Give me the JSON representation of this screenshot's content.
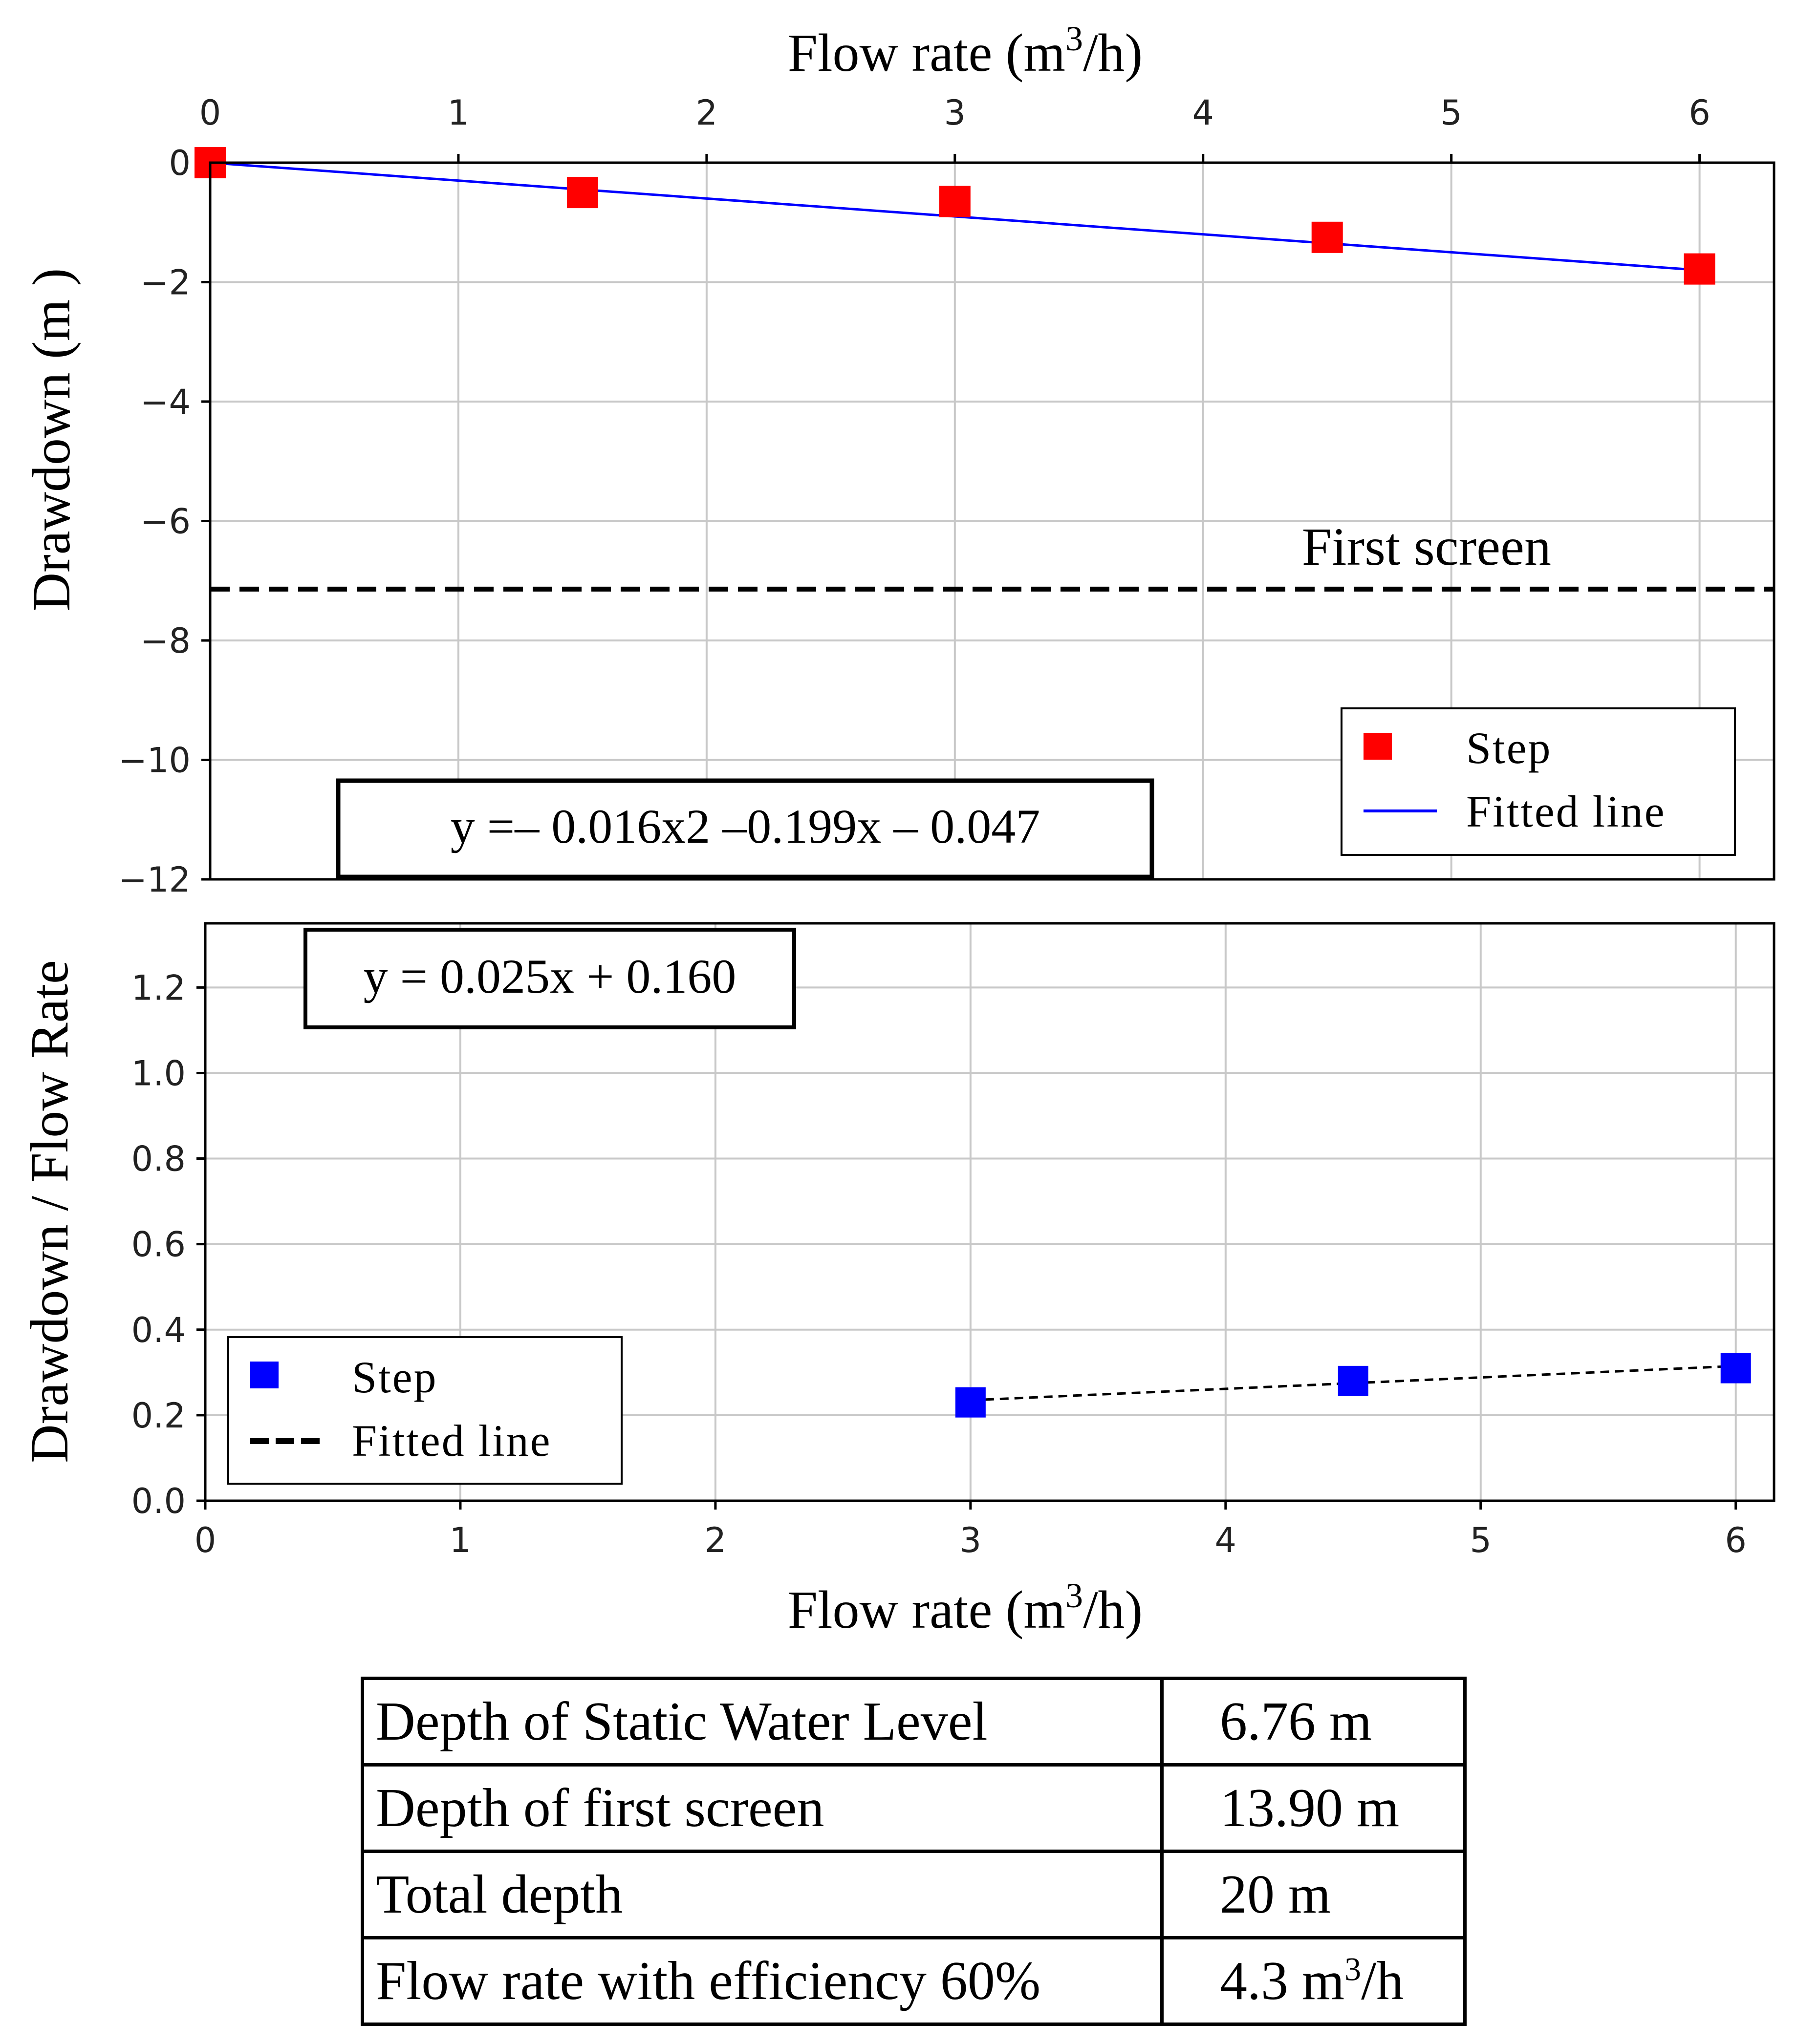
{
  "chart_data": [
    {
      "type": "scatter",
      "title": "",
      "xlabel_top": "Flow rate (m",
      "xlabel_sup": "3",
      "xlabel_tail": "/h)",
      "ylabel": "Drawdown (m )",
      "xlim": [
        0,
        6.3
      ],
      "ylim": [
        -12,
        0
      ],
      "xticks": [
        0,
        1,
        2,
        3,
        4,
        5,
        6
      ],
      "xtick_labels": [
        "0",
        "1",
        "2",
        "3",
        "4",
        "5",
        "6"
      ],
      "yticks": [
        0,
        -2,
        -4,
        -6,
        -8,
        -10,
        -12
      ],
      "ytick_labels": [
        "0",
        "−2",
        "−4",
        "−6",
        "−8",
        "−10",
        "−12"
      ],
      "grid": true,
      "series": [
        {
          "name": "Step",
          "kind": "markers",
          "color": "#ff0000",
          "x": [
            0,
            1.5,
            3,
            4.5,
            6
          ],
          "y": [
            0,
            -0.5,
            -0.65,
            -1.25,
            -1.78
          ]
        },
        {
          "name": "Fitted line",
          "kind": "line",
          "color": "#0000ff",
          "x": [
            0,
            6
          ],
          "y": [
            0,
            -1.8
          ]
        }
      ],
      "reference_line": {
        "y": -7.14,
        "label": "First screen",
        "style": "dashed",
        "color": "#000000"
      },
      "equation": "y =– 0.016x2 –0.199x – 0.047",
      "legend": {
        "position": "lower-right",
        "entries": [
          "Step",
          "Fitted line"
        ]
      }
    },
    {
      "type": "scatter",
      "title": "",
      "xlabel_bottom": "Flow rate (m",
      "xlabel_sup": "3",
      "xlabel_tail": "/h)",
      "ylabel": "Drawdown / Flow Rate",
      "xlim": [
        0,
        6.15
      ],
      "ylim": [
        0,
        1.35
      ],
      "xticks": [
        0,
        1,
        2,
        3,
        4,
        5,
        6
      ],
      "xtick_labels": [
        "0",
        "1",
        "2",
        "3",
        "4",
        "5",
        "6"
      ],
      "yticks": [
        0.0,
        0.2,
        0.4,
        0.6,
        0.8,
        1.0,
        1.2
      ],
      "ytick_labels": [
        "0.0",
        "0.2",
        "0.4",
        "0.6",
        "0.8",
        "1.0",
        "1.2"
      ],
      "grid": true,
      "series": [
        {
          "name": "Step",
          "kind": "markers",
          "color": "#0000ff",
          "x": [
            3,
            4.5,
            6
          ],
          "y": [
            0.23,
            0.28,
            0.31
          ]
        },
        {
          "name": "Fitted line",
          "kind": "dashed-line",
          "color": "#000000",
          "x": [
            3,
            6
          ],
          "y": [
            0.235,
            0.315
          ]
        }
      ],
      "equation": "y = 0.025x + 0.160",
      "legend": {
        "position": "lower-left",
        "entries": [
          "Step",
          "Fitted line"
        ]
      }
    }
  ],
  "summary_table": {
    "rows": [
      {
        "label": "Depth of Static Water Level",
        "value": "6.76 m"
      },
      {
        "label": "Depth of first screen",
        "value": "13.90 m"
      },
      {
        "label": "Total depth",
        "value": "20 m"
      },
      {
        "label": "Flow rate with efficiency 60%",
        "value_prefix": "4.3 m",
        "value_sup": "3",
        "value_suffix": "/h"
      }
    ]
  }
}
